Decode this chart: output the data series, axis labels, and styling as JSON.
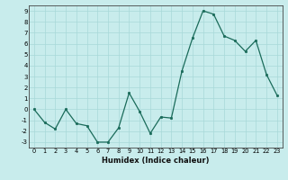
{
  "x": [
    0,
    1,
    2,
    3,
    4,
    5,
    6,
    7,
    8,
    9,
    10,
    11,
    12,
    13,
    14,
    15,
    16,
    17,
    18,
    19,
    20,
    21,
    22,
    23
  ],
  "y": [
    0,
    -1.2,
    -1.8,
    0,
    -1.3,
    -1.5,
    -3,
    -3,
    -1.7,
    1.5,
    -0.2,
    -2.2,
    -0.7,
    -0.8,
    3.5,
    6.5,
    9,
    8.7,
    6.7,
    6.3,
    5.3,
    6.3,
    3.2,
    1.3
  ],
  "line_color": "#1a6b5a",
  "marker_color": "#1a6b5a",
  "bg_color": "#c8ecec",
  "grid_color": "#a8d8d8",
  "xlabel": "Humidex (Indice chaleur)",
  "ylim": [
    -3.5,
    9.5
  ],
  "xlim": [
    -0.5,
    23.5
  ],
  "yticks": [
    -3,
    -2,
    -1,
    0,
    1,
    2,
    3,
    4,
    5,
    6,
    7,
    8,
    9
  ],
  "xticks": [
    0,
    1,
    2,
    3,
    4,
    5,
    6,
    7,
    8,
    9,
    10,
    11,
    12,
    13,
    14,
    15,
    16,
    17,
    18,
    19,
    20,
    21,
    22,
    23
  ]
}
